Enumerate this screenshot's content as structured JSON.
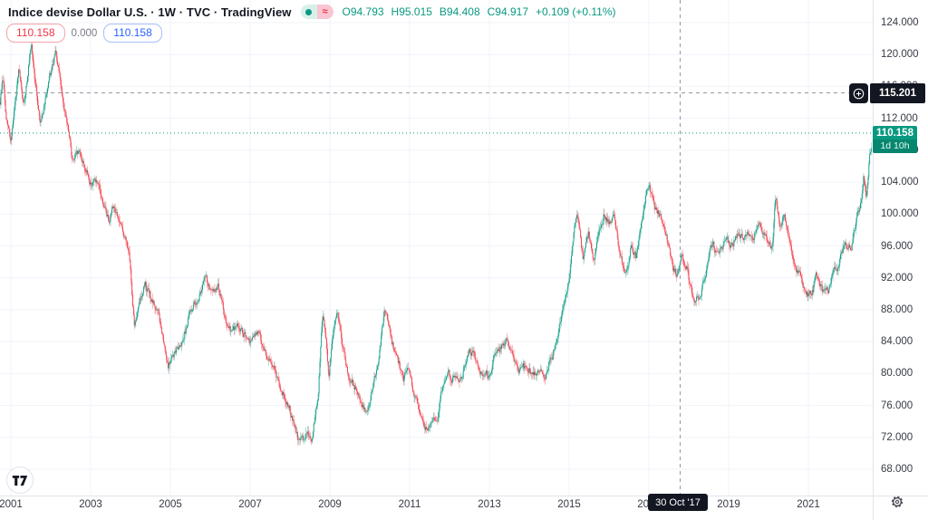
{
  "header": {
    "title": "Indice devise Dollar U.S. · 1W · TVC · TradingView",
    "market_status_icon": "market-open-dot",
    "data_mode_icon": "delayed-data-approx",
    "approx_glyph": "≈",
    "ohlc": {
      "o": "O94.793",
      "h": "H95.015",
      "l": "B94.408",
      "c": "C94.917",
      "change": "+0.109 (+0.11%)"
    },
    "values_row": {
      "red_value": "110.158",
      "mid_value": "0.000",
      "blue_value": "110.158"
    }
  },
  "price_scale": {
    "crosshair_price": "115.201",
    "last_price": "110.158",
    "countdown": "1d 10h"
  },
  "time_scale": {
    "crosshair_date": "30 Oct '17"
  },
  "colors": {
    "up": "#089981",
    "down": "#f23645",
    "accent_blue": "#2962ff",
    "crosshair": "#9598a1",
    "label_bg": "#131722",
    "axis_text": "#363a45",
    "grid": "#f0f3fa",
    "last_price_line": "#089981"
  },
  "chart_data": {
    "type": "candlestick",
    "title": "Indice devise Dollar U.S.",
    "exchange": "TVC",
    "interval": "1W",
    "legend_position": "top-left",
    "grid": true,
    "x_axis_years": [
      2001,
      2003,
      2005,
      2007,
      2009,
      2011,
      2013,
      2015,
      2017,
      2019,
      2021
    ],
    "y_axis_ticks": [
      124,
      120,
      116,
      112,
      108,
      104,
      100,
      96,
      92,
      88,
      84,
      80,
      76,
      72,
      68
    ],
    "ylim": [
      64.7,
      126.8
    ],
    "xlim_years": [
      2000.73,
      2022.65
    ],
    "last_close": 110.158,
    "crosshair": {
      "date": "30 Oct '17",
      "year": 2017.83,
      "price": 115.201,
      "week_ohlc": {
        "open": 94.793,
        "high": 95.015,
        "low": 94.408,
        "close": 94.917,
        "change": 0.109,
        "change_pct": 0.11
      }
    },
    "price_path": [
      [
        2000.73,
        114.0
      ],
      [
        2000.8,
        117.3
      ],
      [
        2000.88,
        111.8
      ],
      [
        2001.0,
        109.2
      ],
      [
        2001.1,
        113.5
      ],
      [
        2001.2,
        117.8
      ],
      [
        2001.32,
        113.2
      ],
      [
        2001.45,
        119.0
      ],
      [
        2001.52,
        120.6
      ],
      [
        2001.62,
        116.0
      ],
      [
        2001.73,
        111.6
      ],
      [
        2001.85,
        113.8
      ],
      [
        2001.95,
        116.5
      ],
      [
        2002.05,
        118.5
      ],
      [
        2002.12,
        120.2
      ],
      [
        2002.25,
        116.0
      ],
      [
        2002.4,
        111.5
      ],
      [
        2002.55,
        106.6
      ],
      [
        2002.72,
        107.8
      ],
      [
        2002.88,
        105.5
      ],
      [
        2003.0,
        103.8
      ],
      [
        2003.12,
        104.3
      ],
      [
        2003.3,
        101.5
      ],
      [
        2003.45,
        99.3
      ],
      [
        2003.57,
        101.2
      ],
      [
        2003.75,
        98.5
      ],
      [
        2003.95,
        95.6
      ],
      [
        2004.1,
        86.2
      ],
      [
        2004.22,
        88.5
      ],
      [
        2004.36,
        91.5
      ],
      [
        2004.55,
        88.8
      ],
      [
        2004.7,
        87.5
      ],
      [
        2004.93,
        80.7
      ],
      [
        2005.1,
        82.5
      ],
      [
        2005.3,
        84.3
      ],
      [
        2005.5,
        87.8
      ],
      [
        2005.7,
        89.5
      ],
      [
        2005.88,
        92.1
      ],
      [
        2006.05,
        89.8
      ],
      [
        2006.2,
        91.0
      ],
      [
        2006.45,
        85.2
      ],
      [
        2006.7,
        86.0
      ],
      [
        2006.97,
        83.7
      ],
      [
        2007.2,
        85.2
      ],
      [
        2007.45,
        81.8
      ],
      [
        2007.6,
        80.5
      ],
      [
        2007.8,
        77.6
      ],
      [
        2007.95,
        76.3
      ],
      [
        2008.1,
        73.5
      ],
      [
        2008.22,
        71.4
      ],
      [
        2008.32,
        71.8
      ],
      [
        2008.42,
        72.6
      ],
      [
        2008.55,
        71.6
      ],
      [
        2008.7,
        77.0
      ],
      [
        2008.82,
        87.5
      ],
      [
        2008.9,
        85.0
      ],
      [
        2008.97,
        80.0
      ],
      [
        2009.1,
        86.0
      ],
      [
        2009.18,
        88.2
      ],
      [
        2009.3,
        84.0
      ],
      [
        2009.45,
        80.2
      ],
      [
        2009.62,
        78.3
      ],
      [
        2009.8,
        76.2
      ],
      [
        2009.92,
        75.1
      ],
      [
        2010.05,
        77.8
      ],
      [
        2010.2,
        81.0
      ],
      [
        2010.38,
        88.2
      ],
      [
        2010.55,
        84.0
      ],
      [
        2010.72,
        81.5
      ],
      [
        2010.85,
        79.2
      ],
      [
        2010.95,
        80.8
      ],
      [
        2011.1,
        77.5
      ],
      [
        2011.25,
        75.2
      ],
      [
        2011.4,
        73.2
      ],
      [
        2011.55,
        74.0
      ],
      [
        2011.7,
        74.5
      ],
      [
        2011.82,
        78.3
      ],
      [
        2011.95,
        80.0
      ],
      [
        2012.1,
        79.2
      ],
      [
        2012.3,
        79.5
      ],
      [
        2012.5,
        83.3
      ],
      [
        2012.68,
        81.2
      ],
      [
        2012.85,
        79.6
      ],
      [
        2013.0,
        80.0
      ],
      [
        2013.15,
        82.0
      ],
      [
        2013.32,
        83.2
      ],
      [
        2013.45,
        84.3
      ],
      [
        2013.6,
        81.5
      ],
      [
        2013.72,
        80.2
      ],
      [
        2013.85,
        80.8
      ],
      [
        2014.0,
        80.5
      ],
      [
        2014.2,
        80.0
      ],
      [
        2014.4,
        79.9
      ],
      [
        2014.6,
        82.5
      ],
      [
        2014.8,
        86.5
      ],
      [
        2015.0,
        92.3
      ],
      [
        2015.12,
        97.5
      ],
      [
        2015.2,
        100.1
      ],
      [
        2015.35,
        94.2
      ],
      [
        2015.48,
        97.3
      ],
      [
        2015.63,
        94.0
      ],
      [
        2015.78,
        98.5
      ],
      [
        2015.88,
        100.1
      ],
      [
        2016.0,
        98.8
      ],
      [
        2016.12,
        99.3
      ],
      [
        2016.25,
        96.0
      ],
      [
        2016.4,
        92.3
      ],
      [
        2016.55,
        95.8
      ],
      [
        2016.68,
        94.6
      ],
      [
        2016.82,
        98.8
      ],
      [
        2016.95,
        103.2
      ],
      [
        2017.02,
        103.3
      ],
      [
        2017.15,
        100.8
      ],
      [
        2017.3,
        99.5
      ],
      [
        2017.45,
        97.0
      ],
      [
        2017.58,
        93.8
      ],
      [
        2017.7,
        92.0
      ],
      [
        2017.83,
        94.8
      ],
      [
        2017.95,
        93.2
      ],
      [
        2018.08,
        89.8
      ],
      [
        2018.15,
        88.8
      ],
      [
        2018.3,
        90.0
      ],
      [
        2018.45,
        93.5
      ],
      [
        2018.6,
        96.2
      ],
      [
        2018.75,
        94.8
      ],
      [
        2018.9,
        96.8
      ],
      [
        2019.05,
        95.8
      ],
      [
        2019.2,
        97.2
      ],
      [
        2019.35,
        96.8
      ],
      [
        2019.5,
        97.5
      ],
      [
        2019.6,
        96.5
      ],
      [
        2019.73,
        99.0
      ],
      [
        2019.85,
        97.8
      ],
      [
        2019.98,
        96.8
      ],
      [
        2020.1,
        95.8
      ],
      [
        2020.18,
        102.3
      ],
      [
        2020.28,
        99.0
      ],
      [
        2020.4,
        100.0
      ],
      [
        2020.55,
        96.0
      ],
      [
        2020.7,
        93.2
      ],
      [
        2020.85,
        91.5
      ],
      [
        2021.0,
        89.7
      ],
      [
        2021.12,
        90.5
      ],
      [
        2021.2,
        92.3
      ],
      [
        2021.3,
        91.0
      ],
      [
        2021.38,
        89.9
      ],
      [
        2021.5,
        90.5
      ],
      [
        2021.62,
        92.6
      ],
      [
        2021.75,
        93.2
      ],
      [
        2021.88,
        96.1
      ],
      [
        2021.97,
        95.9
      ],
      [
        2022.08,
        96.0
      ],
      [
        2022.18,
        98.5
      ],
      [
        2022.3,
        101.3
      ],
      [
        2022.38,
        104.7
      ],
      [
        2022.45,
        101.9
      ],
      [
        2022.53,
        106.8
      ],
      [
        2022.58,
        108.2
      ],
      [
        2022.63,
        110.158
      ]
    ]
  }
}
